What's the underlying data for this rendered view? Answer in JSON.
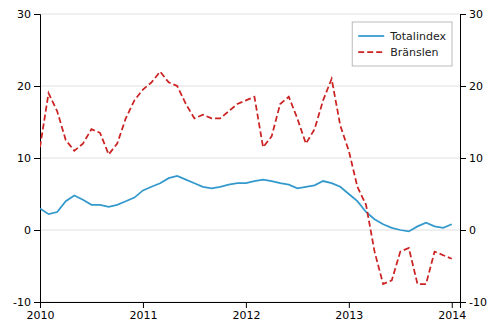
{
  "chart_data": {
    "type": "line",
    "x": [
      2010.0,
      2010.083,
      2010.167,
      2010.25,
      2010.333,
      2010.417,
      2010.5,
      2010.583,
      2010.667,
      2010.75,
      2010.833,
      2010.917,
      2011.0,
      2011.083,
      2011.167,
      2011.25,
      2011.333,
      2011.417,
      2011.5,
      2011.583,
      2011.667,
      2011.75,
      2011.833,
      2011.917,
      2012.0,
      2012.083,
      2012.167,
      2012.25,
      2012.333,
      2012.417,
      2012.5,
      2012.583,
      2012.667,
      2012.75,
      2012.833,
      2012.917,
      2013.0,
      2013.083,
      2013.167,
      2013.25,
      2013.333,
      2013.417,
      2013.5,
      2013.583,
      2013.667,
      2013.75,
      2013.833,
      2013.917,
      2014.0
    ],
    "series": [
      {
        "name": "Totalindex",
        "color": "#3399cc",
        "line_style": "solid",
        "values": [
          3.0,
          2.2,
          2.5,
          4.0,
          4.8,
          4.2,
          3.5,
          3.5,
          3.2,
          3.5,
          4.0,
          4.5,
          5.5,
          6.0,
          6.5,
          7.2,
          7.5,
          7.0,
          6.5,
          6.0,
          5.8,
          6.0,
          6.3,
          6.5,
          6.5,
          6.8,
          7.0,
          6.8,
          6.5,
          6.3,
          5.8,
          6.0,
          6.2,
          6.8,
          6.5,
          6.0,
          5.0,
          4.0,
          2.5,
          1.5,
          0.8,
          0.3,
          0.0,
          -0.2,
          0.5,
          1.0,
          0.5,
          0.3,
          0.8
        ]
      },
      {
        "name": "Bränslen",
        "color": "#cc2222",
        "line_style": "dashed",
        "values": [
          11.5,
          19.0,
          16.5,
          12.5,
          11.0,
          12.0,
          14.0,
          13.5,
          10.5,
          12.0,
          15.5,
          18.0,
          19.5,
          20.5,
          22.0,
          20.5,
          20.0,
          17.5,
          15.5,
          16.0,
          15.5,
          15.5,
          16.5,
          17.5,
          18.0,
          18.5,
          11.5,
          13.0,
          17.5,
          18.5,
          15.5,
          12.0,
          14.0,
          18.0,
          21.0,
          14.5,
          11.0,
          6.0,
          3.5,
          -3.0,
          -7.5,
          -7.0,
          -3.0,
          -2.5,
          -7.5,
          -7.5,
          -3.0,
          -3.5,
          -4.0
        ]
      }
    ],
    "xlim": [
      2010.0,
      2014.08
    ],
    "xticks": [
      2010,
      2011,
      2012,
      2013,
      2014
    ],
    "ylim": [
      -10,
      30
    ],
    "yticks": [
      -10,
      0,
      10,
      20,
      30
    ],
    "y2lim": [
      -10,
      30
    ],
    "y2ticks": [
      -10,
      0,
      10,
      20,
      30
    ],
    "grid": true,
    "legend": "upper right"
  }
}
